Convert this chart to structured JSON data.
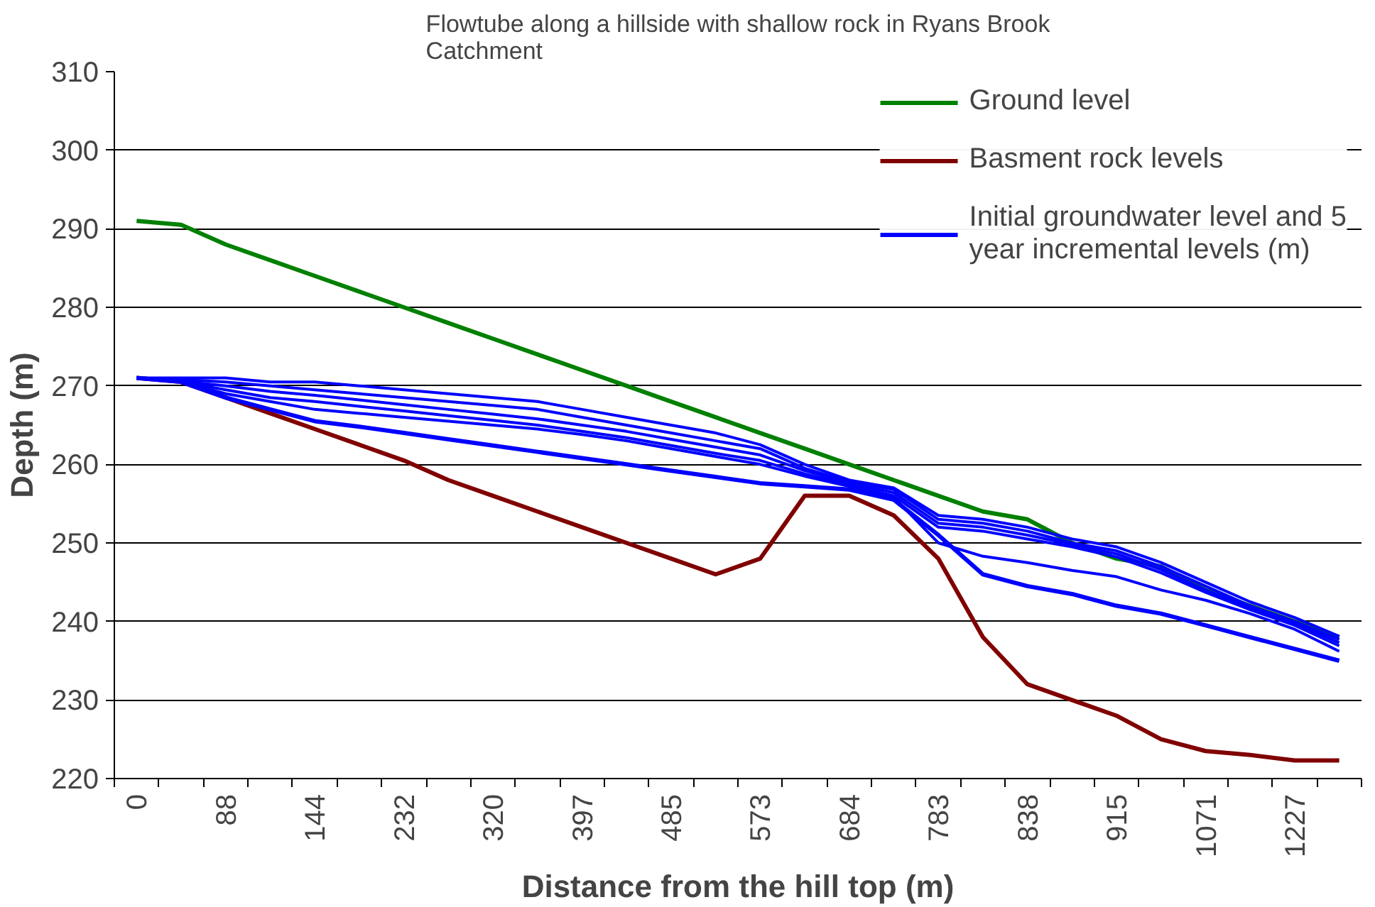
{
  "chart_data": {
    "type": "line",
    "title": "Flowtube along a hillside with shallow rock in Ryans Brook Catchment",
    "xlabel": "Distance from the hill top (m)",
    "ylabel": "Depth (m)",
    "categories": [
      "0",
      null,
      "88",
      null,
      "144",
      null,
      "232",
      null,
      "320",
      null,
      "397",
      null,
      "485",
      null,
      "573",
      null,
      "684",
      null,
      "783",
      null,
      "838",
      null,
      "915",
      null,
      "1071",
      null,
      "1227",
      null
    ],
    "ylim": [
      220,
      310
    ],
    "yticks": [
      220,
      230,
      240,
      250,
      260,
      270,
      280,
      290,
      300,
      310
    ],
    "grid": "y",
    "legend": "top right",
    "series": [
      {
        "name": "Ground level",
        "color": "#008000",
        "values": [
          291,
          290.5,
          288,
          286,
          284,
          282,
          280,
          278,
          276,
          274,
          272,
          270,
          268,
          266,
          264,
          262,
          260,
          258,
          256,
          254,
          253,
          250,
          248,
          247,
          244,
          242,
          240,
          238
        ]
      },
      {
        "name": "Basment rock levels",
        "color": "#800000",
        "values": [
          271,
          270.5,
          268.5,
          266.5,
          264.5,
          262.5,
          260.5,
          258,
          256,
          254,
          252,
          250,
          248,
          246,
          248,
          256,
          256,
          253.5,
          248,
          238,
          232,
          230,
          228,
          225,
          223.5,
          223,
          222.3,
          222.3
        ]
      },
      {
        "name": "Initial groundwater level and 5 year incremental levels (m)",
        "color": "#0000ff",
        "values": [
          271,
          270.5,
          268.5,
          267,
          265.5,
          264.8,
          264,
          263.2,
          262.4,
          261.6,
          260.8,
          260,
          259.2,
          258.4,
          257.6,
          257.2,
          256.8,
          255.5,
          251,
          246,
          244.5,
          243.5,
          242,
          241,
          239.5,
          238,
          236.5,
          235
        ]
      },
      {
        "color": "#0000ff",
        "values": [
          271,
          270.5,
          269,
          268,
          267,
          266.5,
          266,
          265.5,
          265,
          264.5,
          263.8,
          263,
          262,
          261,
          260,
          258.5,
          257.2,
          255.8,
          250,
          248.3,
          247.5,
          246.5,
          245.7,
          244,
          242.7,
          241,
          239,
          236.2
        ]
      },
      {
        "color": "#0000ff",
        "values": [
          271,
          270.5,
          269.5,
          268.5,
          268,
          267.4,
          266.8,
          266.2,
          265.6,
          265,
          264.2,
          263.4,
          262.4,
          261.4,
          260.5,
          258.8,
          257.4,
          256,
          252,
          251.5,
          250.5,
          249.5,
          248.2,
          246.2,
          243.7,
          241.5,
          239.5,
          236.9
        ]
      },
      {
        "color": "#0000ff",
        "values": [
          271,
          270.6,
          270,
          269.3,
          268.8,
          268.2,
          267.6,
          267,
          266.4,
          265.8,
          265,
          264.2,
          263.2,
          262.2,
          261.2,
          259.2,
          257.6,
          256.4,
          252.5,
          252,
          251,
          249.8,
          248.6,
          246.6,
          244,
          241.8,
          239.8,
          237.3
        ]
      },
      {
        "color": "#0000ff",
        "values": [
          271,
          270.8,
          270.5,
          270,
          269.5,
          269,
          268.5,
          268,
          267.5,
          267,
          266,
          265,
          264,
          263,
          262,
          259.5,
          257.8,
          256.8,
          253,
          252.5,
          251.5,
          250,
          249,
          247,
          244.5,
          242,
          240,
          237.7
        ]
      },
      {
        "color": "#0000ff",
        "values": [
          271,
          271,
          271,
          270.5,
          270.5,
          270,
          269.5,
          269,
          268.5,
          268,
          267,
          266,
          265,
          264,
          262.5,
          260,
          258,
          257,
          253.5,
          253,
          252,
          250.5,
          249.5,
          247.5,
          245,
          242.5,
          240.5,
          238.1
        ]
      }
    ]
  }
}
